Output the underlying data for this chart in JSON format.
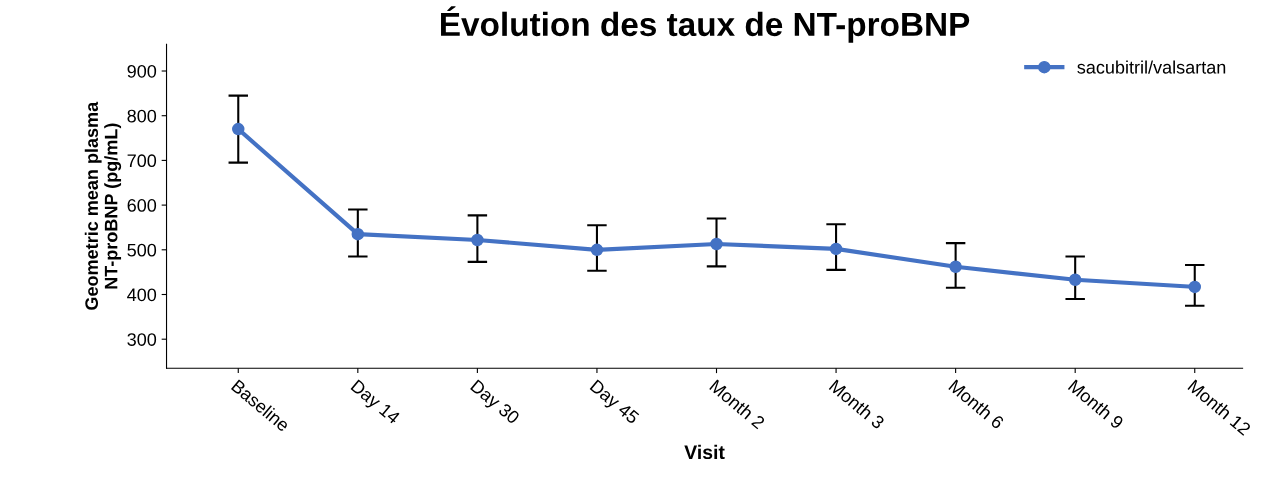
{
  "chart_data": {
    "type": "line",
    "title": "Évolution des taux de NT-proBNP",
    "xlabel": "Visit",
    "ylabel": "Geometric mean plasma\nNT-proBNP (pg/mL)",
    "categories": [
      "Baseline",
      "Day 14",
      "Day 30",
      "Day 45",
      "Month 2",
      "Month 3",
      "Month 6",
      "Month 9",
      "Month 12"
    ],
    "series": [
      {
        "name": "sacubitril/valsartan",
        "color": "#4472c4",
        "values": [
          770,
          535,
          522,
          500,
          513,
          502,
          462,
          433,
          417
        ],
        "errors": [
          [
            695,
            845
          ],
          [
            485,
            590
          ],
          [
            473,
            577
          ],
          [
            453,
            555
          ],
          [
            463,
            570
          ],
          [
            455,
            557
          ],
          [
            415,
            515
          ],
          [
            390,
            485
          ],
          [
            375,
            466
          ]
        ]
      }
    ],
    "ylim": [
      235,
      960
    ],
    "yticks": [
      300,
      400,
      500,
      600,
      700,
      800,
      900
    ],
    "grid": false,
    "legend": "top right",
    "marker": "circle",
    "line_style": "solid"
  }
}
